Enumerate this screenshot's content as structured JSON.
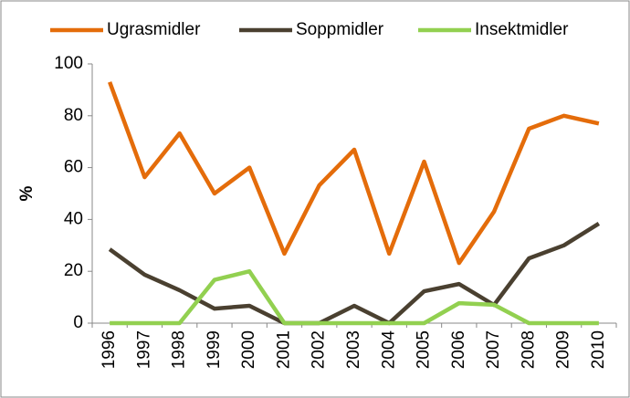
{
  "chart_data": {
    "type": "line",
    "y_label": "%",
    "categories": [
      "1996",
      "1997",
      "1998",
      "1999",
      "2000",
      "2001",
      "2002",
      "2003",
      "2004",
      "2005",
      "2006",
      "2007",
      "2008",
      "2009",
      "2010"
    ],
    "series": [
      {
        "name": "Ugrasmidler",
        "color": "#e46c0a",
        "values": [
          93,
          56.3,
          73.2,
          50,
          60,
          26.8,
          53.2,
          66.9,
          26.8,
          62.3,
          23.2,
          43,
          75,
          80,
          77
        ]
      },
      {
        "name": "Soppmidler",
        "color": "#4a4030",
        "values": [
          28.5,
          18.7,
          12.7,
          5.6,
          6.7,
          0,
          0,
          6.7,
          0,
          12.3,
          15.1,
          7,
          25,
          30,
          38.4
        ]
      },
      {
        "name": "Insektmidler",
        "color": "#92d050",
        "values": [
          0,
          0,
          0,
          16.7,
          20,
          0,
          0,
          0,
          0,
          0,
          7.7,
          7.1,
          0,
          0,
          0
        ]
      }
    ],
    "ylim": [
      0,
      100
    ],
    "yticks": [
      0,
      20,
      40,
      60,
      80,
      100
    ],
    "grid": false,
    "legend": "top"
  }
}
